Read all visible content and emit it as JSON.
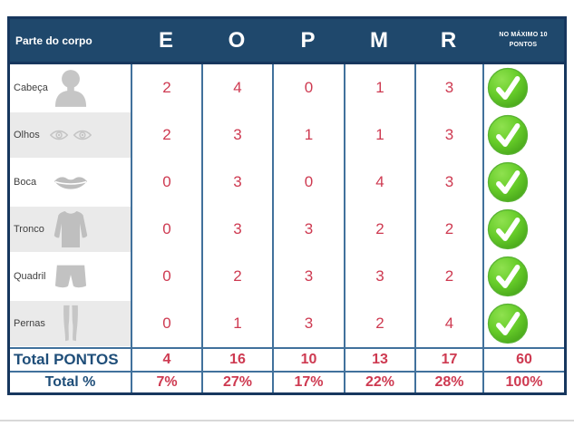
{
  "colors": {
    "header_bg": "#1F486C",
    "outer_border": "#17375E",
    "inner_border": "#41719C",
    "value_red": "#CE3A51",
    "total_label_blue": "#1F4E79",
    "alt_row_gray": "#EAEAEA",
    "icon_gray": "#C4C4C4",
    "check_green": "#66CC29"
  },
  "table": {
    "header": {
      "part_label": "Parte do corpo",
      "score_columns": [
        "E",
        "O",
        "P",
        "M",
        "R"
      ],
      "max_note_line1": "NO MÁXIMO 10",
      "max_note_line2": "PONTOS"
    },
    "rows": [
      {
        "label": "Cabeça",
        "icon": "head-silhouette-icon",
        "values": [
          "2",
          "4",
          "0",
          "1",
          "3"
        ],
        "status_icon": "green-check-icon"
      },
      {
        "label": "Olhos",
        "icon": "eyes-icon",
        "values": [
          "2",
          "3",
          "1",
          "1",
          "3"
        ],
        "status_icon": "green-check-icon"
      },
      {
        "label": "Boca",
        "icon": "lips-icon",
        "values": [
          "0",
          "3",
          "0",
          "4",
          "3"
        ],
        "status_icon": "green-check-icon"
      },
      {
        "label": "Tronco",
        "icon": "torso-icon",
        "values": [
          "0",
          "3",
          "3",
          "2",
          "2"
        ],
        "status_icon": "green-check-icon"
      },
      {
        "label": "Quadril",
        "icon": "shorts-icon",
        "values": [
          "0",
          "2",
          "3",
          "3",
          "2"
        ],
        "status_icon": "green-check-icon"
      },
      {
        "label": "Pernas",
        "icon": "legs-icon",
        "values": [
          "0",
          "1",
          "3",
          "2",
          "4"
        ],
        "status_icon": "green-check-icon"
      }
    ],
    "totals": {
      "label": "Total PONTOS",
      "values": [
        "4",
        "16",
        "10",
        "13",
        "17"
      ],
      "grand_total": "60"
    },
    "percents": {
      "label": "Total %",
      "values": [
        "7%",
        "27%",
        "17%",
        "22%",
        "28%"
      ],
      "grand_total": "100%"
    }
  }
}
